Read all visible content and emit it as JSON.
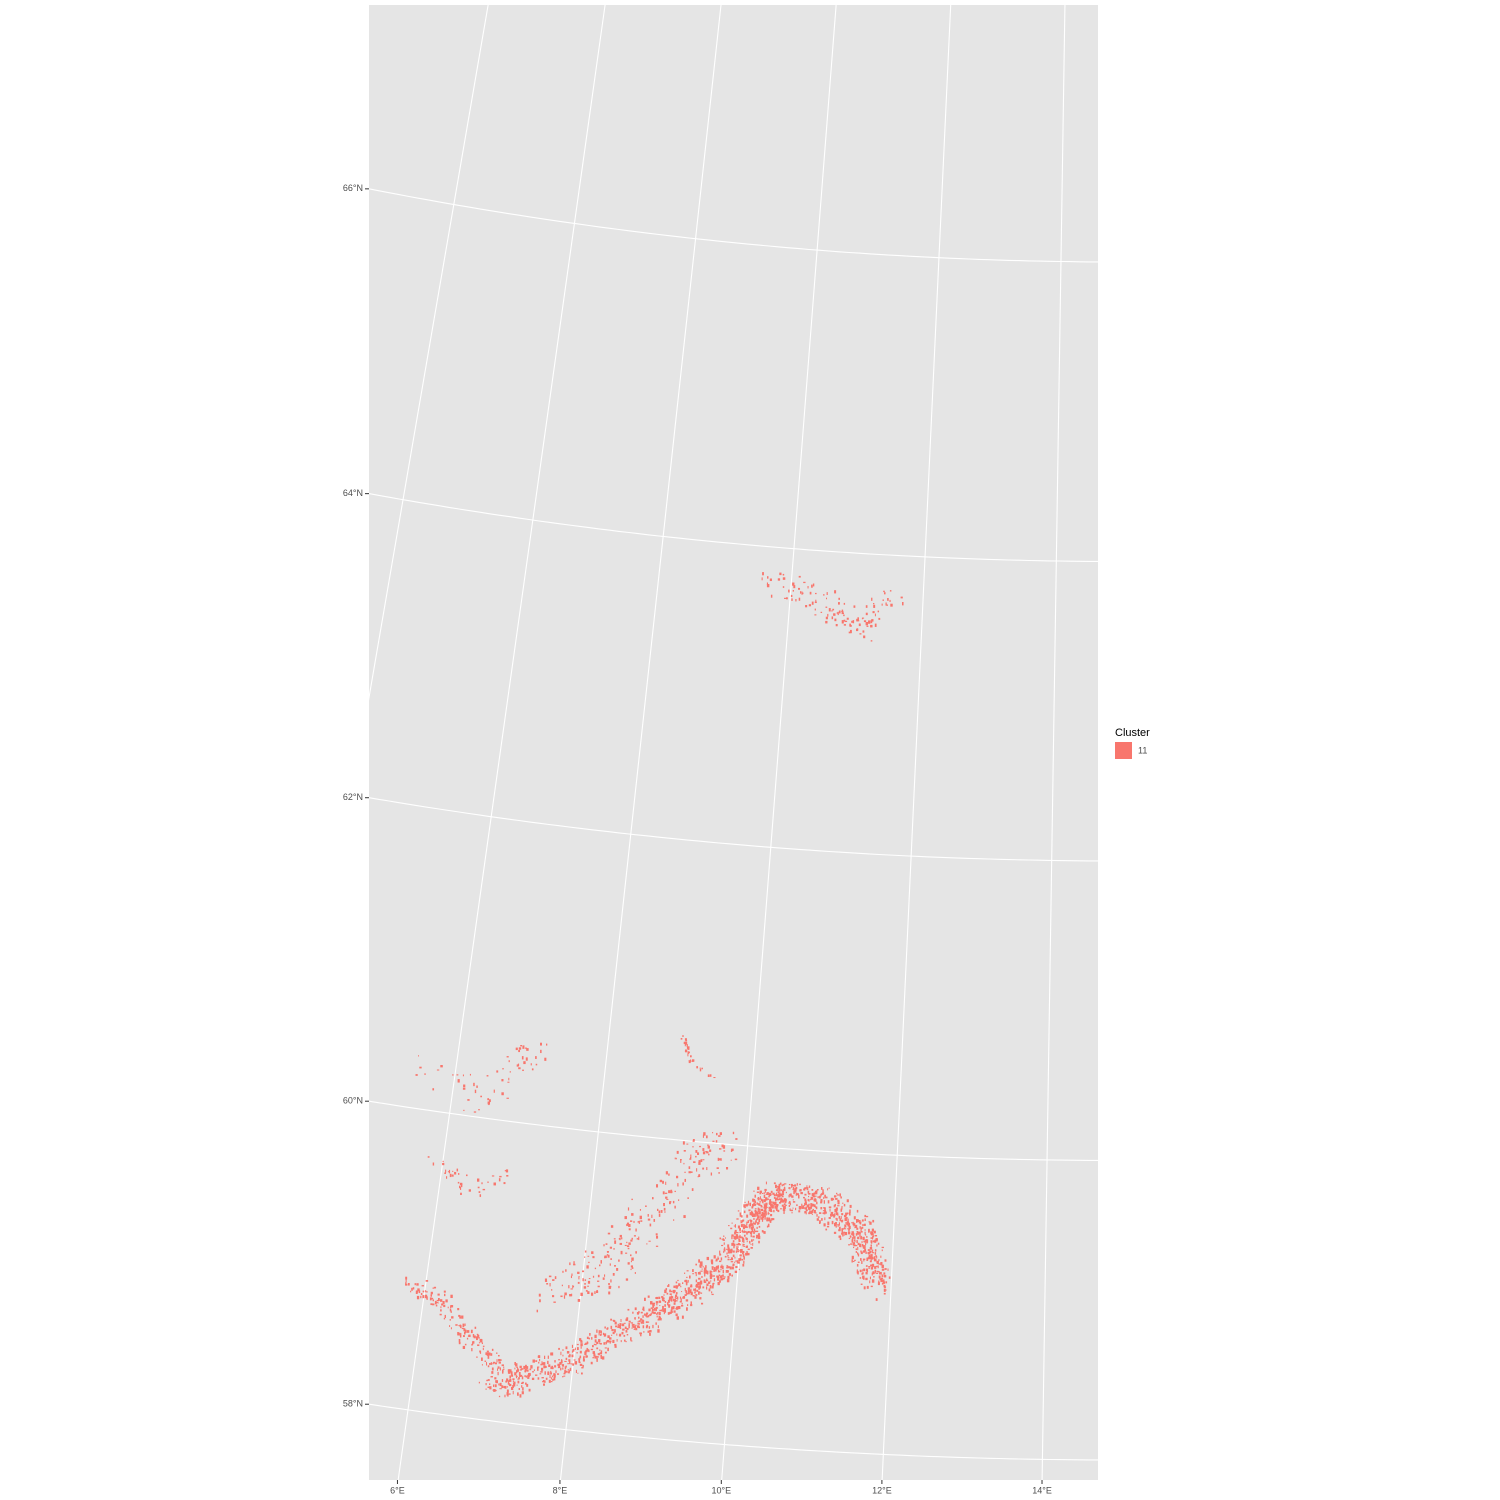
{
  "x_axis": {
    "ticks": [
      {
        "value": 6,
        "label": "6°E"
      },
      {
        "value": 8,
        "label": "8°E"
      },
      {
        "value": 10,
        "label": "10°E"
      },
      {
        "value": 12,
        "label": "12°E"
      },
      {
        "value": 14,
        "label": "14°E"
      }
    ]
  },
  "y_axis": {
    "ticks": [
      {
        "value": 58,
        "label": "58°N"
      },
      {
        "value": 60,
        "label": "60°N"
      },
      {
        "value": 62,
        "label": "62°N"
      },
      {
        "value": 64,
        "label": "64°N"
      },
      {
        "value": 66,
        "label": "66°N"
      }
    ]
  },
  "legend": {
    "title": "Cluster",
    "entries": [
      {
        "label": "11",
        "color": "#F8766D"
      }
    ]
  }
}
